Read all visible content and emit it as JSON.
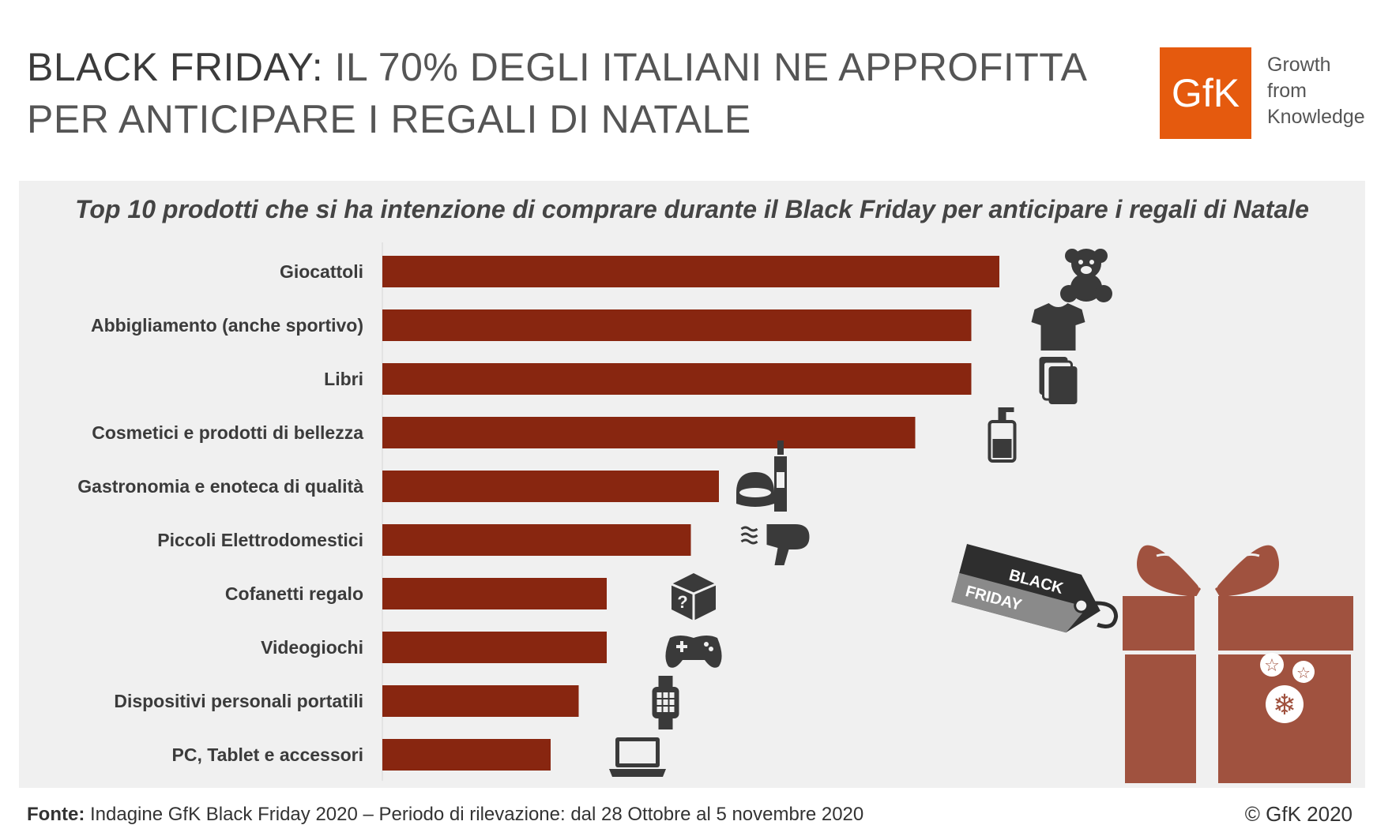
{
  "header": {
    "title_strong": "BLACK FRIDAY:",
    "title_rest": " IL 70% DEGLI ITALIANI NE APPROFITTA",
    "title_line2": "PER ANTICIPARE I REGALI DI NATALE"
  },
  "logo": {
    "mark": "GfK",
    "tagline_1": "Growth",
    "tagline_2": "from",
    "tagline_3": "Knowledge",
    "color": "#e55a0e"
  },
  "chart_data": {
    "type": "bar",
    "orientation": "horizontal",
    "title": "Top 10 prodotti che si ha intenzione di comprare durante il Black Friday per anticipare i regali di Natale",
    "categories": [
      "Giocattoli",
      "Abbigliamento (anche sportivo)",
      "Libri",
      "Cosmetici e prodotti di bellezza",
      "Gastronomia e enoteca di qualità",
      "Piccoli Elettrodomestici",
      "Cofanetti regalo",
      "Videogiochi",
      "Dispositivi personali portatili",
      "PC, Tablet e accessori"
    ],
    "values": [
      22,
      21,
      21,
      19,
      12,
      11,
      8,
      8,
      7,
      6
    ],
    "xlim": [
      0,
      25
    ],
    "bar_color": "#882610",
    "icons": [
      "teddy-bear-icon",
      "tshirt-icon",
      "books-icon",
      "cosmetic-bottle-icon",
      "cake-and-wine-icon",
      "hairdryer-icon",
      "mystery-box-icon",
      "gamepad-icon",
      "smartwatch-icon",
      "laptop-icon"
    ],
    "tag_text_1": "BLACK",
    "tag_text_2": "FRIDAY",
    "gift_color": "#a0523f"
  },
  "footer": {
    "source_label": "Fonte:",
    "source_text": " Indagine GfK Black Friday 2020 – Periodo di rilevazione: dal 28 Ottobre al 5 novembre 2020",
    "copyright": "© GfK 2020"
  }
}
